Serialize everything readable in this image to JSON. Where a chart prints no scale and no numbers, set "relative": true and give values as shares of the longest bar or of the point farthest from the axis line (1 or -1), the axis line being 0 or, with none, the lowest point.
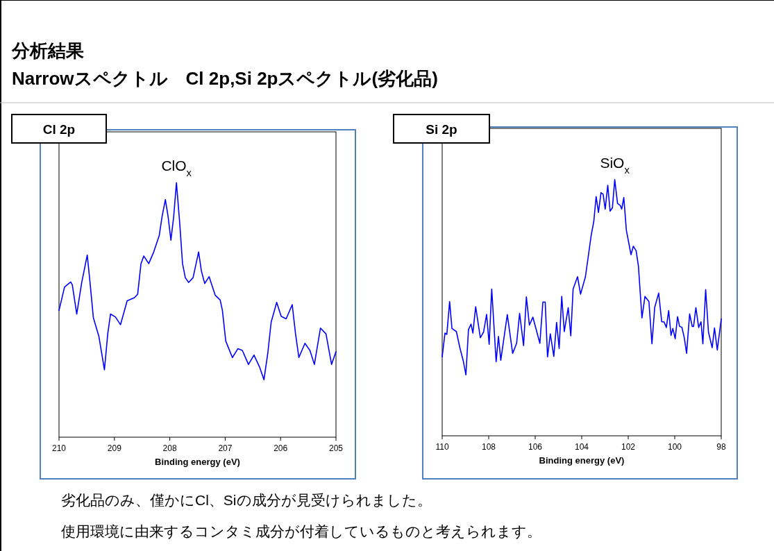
{
  "chart_data": [
    {
      "type": "line",
      "title": "Cl 2p",
      "xlabel": "Binding energy (eV)",
      "relative": true,
      "xlim": [
        210,
        205
      ],
      "xticks": [
        210,
        209,
        208,
        207,
        206,
        205
      ],
      "grid": false,
      "marker": "none",
      "line_style": "solid",
      "annotations": [
        "分析結果",
        "Narrowスペクトル　Cl 2p,Si 2pスペクトル(劣化品)",
        "ClO$_{x}$",
        "劣化品のみ、僅かにCl、Siの成分が見受けられました。",
        "使用環境に由来するコンタミ成分が付着しているものと考えられます。"
      ],
      "series": [
        {
          "color": "#0000ff",
          "x": [
            210.0,
            209.9,
            209.79,
            209.76,
            209.68,
            209.59,
            209.49,
            209.44,
            209.38,
            209.28,
            209.18,
            209.12,
            209.07,
            208.98,
            208.89,
            208.77,
            208.64,
            208.58,
            208.52,
            208.47,
            208.38,
            208.29,
            208.19,
            208.14,
            208.08,
            208.03,
            207.98,
            207.93,
            207.88,
            207.82,
            207.77,
            207.72,
            207.66,
            207.58,
            207.48,
            207.43,
            207.37,
            207.29,
            207.18,
            207.09,
            207.05,
            206.99,
            206.87,
            206.77,
            206.69,
            206.58,
            206.48,
            206.38,
            206.3,
            206.23,
            206.17,
            206.07,
            205.99,
            205.9,
            205.79,
            205.73,
            205.67,
            205.56,
            205.47,
            205.39,
            205.28,
            205.18,
            205.08,
            205.0
          ],
          "values": [
            0.498,
            0.59,
            0.61,
            0.599,
            0.484,
            0.608,
            0.716,
            0.608,
            0.47,
            0.396,
            0.265,
            0.406,
            0.484,
            0.472,
            0.442,
            0.536,
            0.548,
            0.562,
            0.682,
            0.712,
            0.682,
            0.728,
            0.793,
            0.866,
            0.934,
            0.866,
            0.774,
            0.866,
            1.0,
            0.839,
            0.682,
            0.627,
            0.608,
            0.627,
            0.728,
            0.654,
            0.604,
            0.631,
            0.558,
            0.539,
            0.498,
            0.378,
            0.313,
            0.348,
            0.341,
            0.286,
            0.323,
            0.276,
            0.226,
            0.332,
            0.452,
            0.53,
            0.475,
            0.465,
            0.521,
            0.406,
            0.313,
            0.369,
            0.341,
            0.286,
            0.429,
            0.406,
            0.286,
            0.336
          ]
        }
      ]
    },
    {
      "type": "line",
      "title": "Si 2p",
      "xlabel": "Binding energy (eV)",
      "relative": true,
      "xlim": [
        110,
        98
      ],
      "xticks": [
        110,
        108,
        106,
        104,
        102,
        100,
        98
      ],
      "grid": false,
      "marker": "none",
      "line_style": "solid",
      "annotations": [
        "SiO$_{x}$"
      ],
      "series": [
        {
          "color": "#0000ff",
          "x": [
            110.0,
            109.88,
            109.8,
            109.68,
            109.58,
            109.39,
            109.24,
            109.09,
            108.98,
            108.87,
            108.76,
            108.68,
            108.56,
            108.36,
            108.22,
            108.09,
            107.98,
            107.87,
            107.68,
            107.58,
            107.48,
            107.2,
            106.97,
            106.8,
            106.67,
            106.5,
            106.38,
            106.25,
            106.1,
            105.8,
            105.67,
            105.57,
            105.47,
            105.35,
            105.2,
            105.08,
            104.97,
            104.86,
            104.75,
            104.58,
            104.47,
            104.37,
            104.18,
            104.05,
            103.84,
            103.59,
            103.48,
            103.38,
            103.28,
            103.17,
            103.08,
            102.99,
            102.88,
            102.78,
            102.68,
            102.58,
            102.46,
            102.34,
            102.28,
            102.19,
            102.08,
            101.88,
            101.78,
            101.66,
            101.56,
            101.41,
            101.28,
            101.11,
            100.98,
            100.86,
            100.69,
            100.56,
            100.46,
            100.36,
            100.26,
            100.16,
            100.08,
            99.98,
            99.88,
            99.79,
            99.69,
            99.59,
            99.49,
            99.36,
            99.25,
            99.19,
            99.09,
            98.97,
            98.87,
            98.79,
            98.67,
            98.55,
            98.39,
            98.29,
            98.17,
            98.0
          ],
          "values": [
            0.308,
            0.401,
            0.396,
            0.524,
            0.419,
            0.407,
            0.344,
            0.291,
            0.238,
            0.414,
            0.436,
            0.401,
            0.504,
            0.383,
            0.405,
            0.474,
            0.357,
            0.573,
            0.289,
            0.388,
            0.295,
            0.473,
            0.322,
            0.361,
            0.478,
            0.352,
            0.542,
            0.432,
            0.463,
            0.361,
            0.522,
            0.522,
            0.308,
            0.398,
            0.31,
            0.443,
            0.341,
            0.544,
            0.407,
            0.5,
            0.39,
            0.573,
            0.621,
            0.553,
            0.621,
            0.784,
            0.837,
            0.934,
            0.872,
            0.949,
            0.943,
            0.885,
            0.978,
            0.877,
            0.89,
            1.0,
            0.907,
            0.899,
            0.885,
            0.93,
            0.802,
            0.707,
            0.74,
            0.722,
            0.661,
            0.46,
            0.544,
            0.524,
            0.359,
            0.502,
            0.557,
            0.445,
            0.445,
            0.423,
            0.489,
            0.392,
            0.419,
            0.379,
            0.465,
            0.427,
            0.423,
            0.383,
            0.322,
            0.476,
            0.427,
            0.427,
            0.5,
            0.423,
            0.445,
            0.359,
            0.571,
            0.405,
            0.344,
            0.421,
            0.335,
            0.456
          ]
        }
      ]
    }
  ]
}
